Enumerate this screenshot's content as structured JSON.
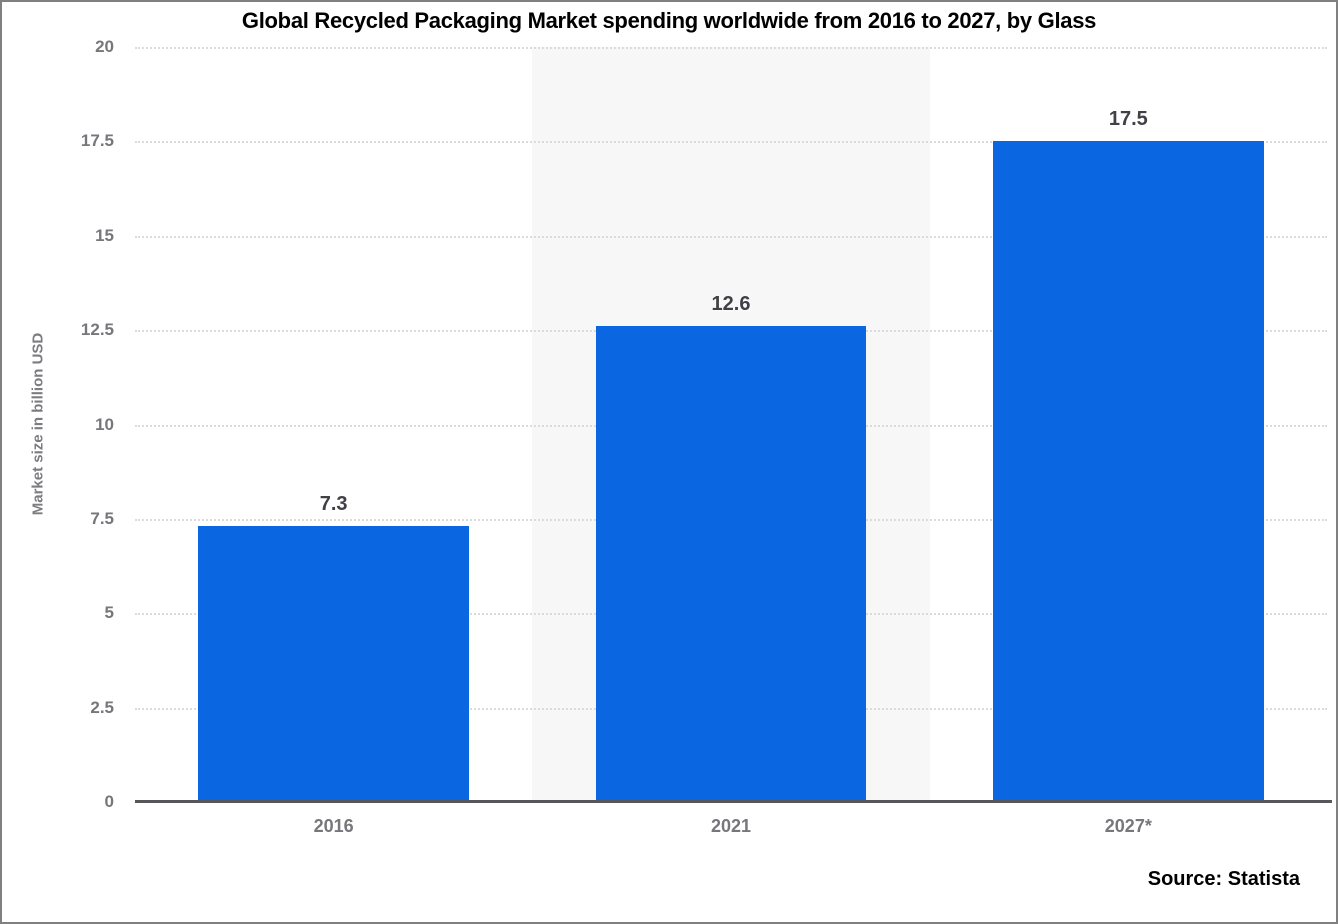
{
  "title": "Global Recycled Packaging Market spending worldwide from 2016 to 2027, by Glass",
  "source_label": "Source: Statista",
  "colors": {
    "bar": "#0b66e2",
    "band": "#f7f7f7",
    "gridline": "#dbdbdb",
    "axis_line": "#57575b",
    "tick_text": "#76767b",
    "value_text": "#404046",
    "frame_border": "#808080"
  },
  "chart_data": {
    "type": "bar",
    "title": "Global Recycled Packaging Market spending worldwide from 2016 to 2027, by Glass",
    "categories": [
      "2016",
      "2021",
      "2027*"
    ],
    "values": [
      7.3,
      12.6,
      17.5
    ],
    "value_labels": [
      "7.3",
      "12.6",
      "17.5"
    ],
    "xlabel": "",
    "ylabel": "Market size in billion USD",
    "ylim": [
      0,
      20
    ],
    "yticks": [
      0,
      2.5,
      5,
      7.5,
      10,
      12.5,
      15,
      17.5,
      20
    ],
    "ytick_labels": [
      "0",
      "2.5",
      "5",
      "7.5",
      "10",
      "12.5",
      "15",
      "17.5",
      "20"
    ],
    "grid": "horizontal-dotted",
    "legend": "none",
    "bar_color": "#0b66e2",
    "band_color": "#f7f7f7",
    "banded_category_index": 1,
    "bar_width_fraction": 0.682,
    "annotation": "Source: Statista"
  }
}
